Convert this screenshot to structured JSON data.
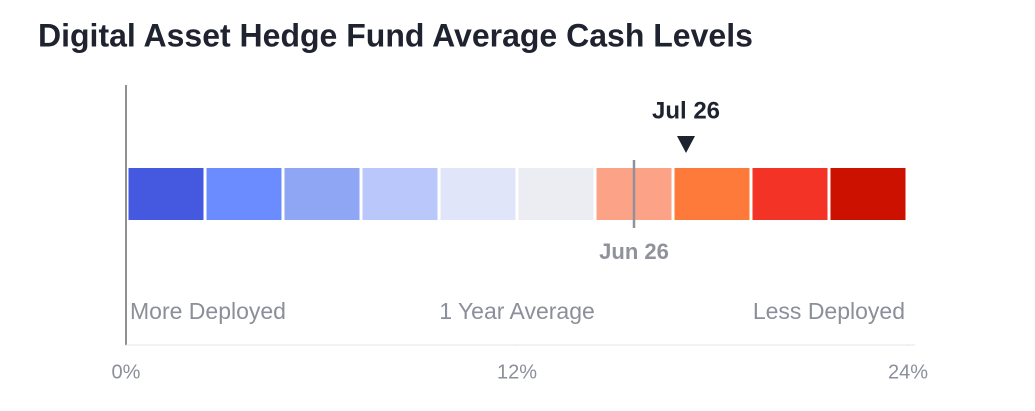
{
  "chart_data": {
    "type": "gauge",
    "title": "Digital Asset Hedge Fund Average Cash Levels",
    "bins": [
      0,
      2.4,
      4.8,
      7.2,
      9.6,
      12,
      14.4,
      16.8,
      19.2,
      21.6,
      24
    ],
    "colors": [
      "#4559e0",
      "#6b8cff",
      "#8fa6f5",
      "#b9c7fb",
      "#e0e5fa",
      "#ecedf2",
      "#fca387",
      "#fd7a3a",
      "#f23325",
      "#cc1100"
    ],
    "markers": [
      {
        "name": "Jul 26",
        "value": 17.2
      },
      {
        "name": "Jun 26",
        "value": 15.6
      }
    ],
    "annotations": [
      "More Deployed",
      "1 Year Average",
      "Less Deployed"
    ],
    "xlim": [
      0,
      24
    ],
    "xticks": [
      {
        "value": 0,
        "label": "0%"
      },
      {
        "value": 12,
        "label": "12%"
      },
      {
        "value": 24,
        "label": "24%"
      }
    ]
  }
}
